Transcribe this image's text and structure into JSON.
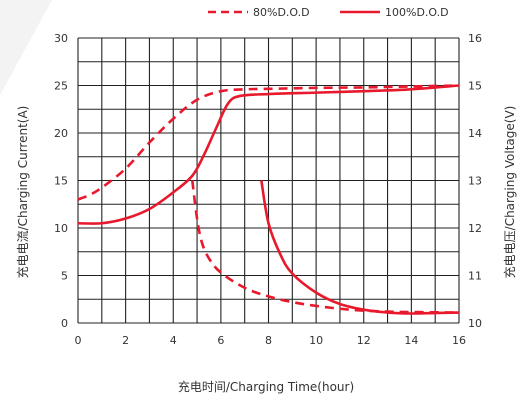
{
  "chart_data": {
    "type": "line",
    "xlabel": "充电时间/Charging Time(hour)",
    "ylabel_left": "充电电流/Charging Current(A)",
    "ylabel_right": "充电电压/Charging Voltage(V)",
    "xlim": [
      0,
      16
    ],
    "ylim_left": [
      0,
      30
    ],
    "ylim_right": [
      10,
      16
    ],
    "x_ticks": [
      "0",
      "2",
      "4",
      "6",
      "8",
      "10",
      "12",
      "14",
      "16"
    ],
    "y_ticks_left": [
      "0",
      "5",
      "10",
      "15",
      "20",
      "25",
      "30"
    ],
    "y_ticks_right": [
      "10",
      "11",
      "12",
      "13",
      "14",
      "15",
      "16"
    ],
    "grid": true,
    "legend_position": "top-right",
    "legend": [
      {
        "label": "80%D.O.D",
        "style": "dashed",
        "color": "#e8192c"
      },
      {
        "label": "100%D.O.D",
        "style": "solid",
        "color": "#e8192c"
      }
    ],
    "series": [
      {
        "style": "dashed",
        "axis": "right",
        "x": [
          0,
          0.5,
          1,
          2,
          3,
          4,
          5,
          6,
          7,
          8,
          10,
          12,
          14,
          16
        ],
        "y": [
          12.6,
          12.7,
          12.85,
          13.25,
          13.8,
          14.3,
          14.7,
          14.88,
          14.92,
          14.93,
          14.95,
          14.96,
          14.98,
          15.0
        ]
      },
      {
        "style": "solid",
        "axis": "right",
        "x": [
          0,
          1,
          2,
          3,
          4,
          4.8,
          5.3,
          5.8,
          6.3,
          6.8,
          8,
          10,
          12,
          14,
          16
        ],
        "y": [
          12.1,
          12.1,
          12.2,
          12.4,
          12.75,
          13.1,
          13.55,
          14.1,
          14.62,
          14.78,
          14.82,
          14.85,
          14.88,
          14.92,
          15.0
        ]
      },
      {
        "style": "dashed",
        "axis": "left",
        "x": [
          4.8,
          5.0,
          5.2,
          5.5,
          6,
          7,
          8,
          9,
          10,
          11,
          12,
          13,
          14,
          16
        ],
        "y": [
          15,
          11,
          8.5,
          6.8,
          5.3,
          3.7,
          2.8,
          2.2,
          1.8,
          1.5,
          1.3,
          1.2,
          1.15,
          1.1
        ]
      },
      {
        "style": "solid",
        "axis": "left",
        "x": [
          7.7,
          8.0,
          8.5,
          9,
          10,
          11,
          12,
          13,
          14,
          15,
          16
        ],
        "y": [
          15,
          10.5,
          7.2,
          5.2,
          3.2,
          2.0,
          1.4,
          1.1,
          1.0,
          1.05,
          1.1
        ]
      }
    ]
  }
}
